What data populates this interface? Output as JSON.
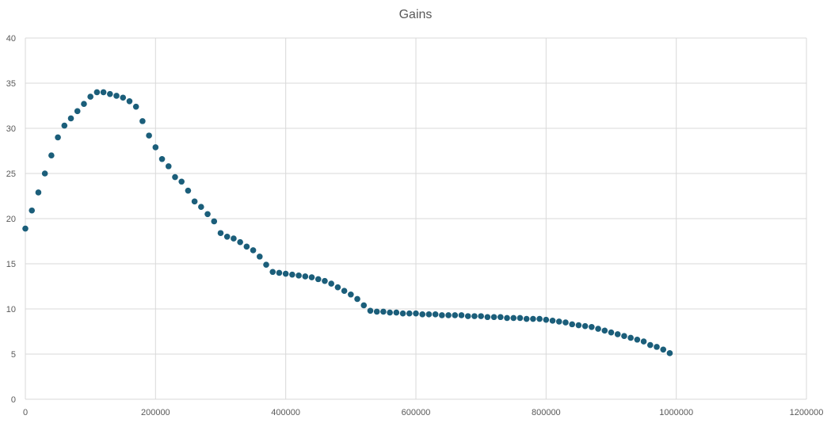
{
  "chart_data": {
    "type": "scatter",
    "title": "Gains",
    "xlabel": "",
    "ylabel": "",
    "xlim": [
      0,
      1200000
    ],
    "ylim": [
      0,
      40
    ],
    "x_ticks": [
      "0",
      "200000",
      "400000",
      "600000",
      "800000",
      "1000000",
      "1200000"
    ],
    "y_ticks": [
      "0",
      "5",
      "10",
      "15",
      "20",
      "25",
      "30",
      "35",
      "40"
    ],
    "grid": true,
    "legend": "none",
    "marker_color": "#1B5E7A",
    "grid_color": "#D9D9D9",
    "series": [
      {
        "x": [
          0,
          10000,
          20000,
          30000,
          40000,
          50000,
          60000,
          70000,
          80000,
          90000,
          100000,
          110000,
          120000,
          130000,
          140000,
          150000,
          160000,
          170000,
          180000,
          190000,
          200000,
          210000,
          220000,
          230000,
          240000,
          250000,
          260000,
          270000,
          280000,
          290000,
          300000,
          310000,
          320000,
          330000,
          340000,
          350000,
          360000,
          370000,
          380000,
          390000,
          400000,
          410000,
          420000,
          430000,
          440000,
          450000,
          460000,
          470000,
          480000,
          490000,
          500000,
          510000,
          520000,
          530000,
          540000,
          550000,
          560000,
          570000,
          580000,
          590000,
          600000,
          610000,
          620000,
          630000,
          640000,
          650000,
          660000,
          670000,
          680000,
          690000,
          700000,
          710000,
          720000,
          730000,
          740000,
          750000,
          760000,
          770000,
          780000,
          790000,
          800000,
          810000,
          820000,
          830000,
          840000,
          850000,
          860000,
          870000,
          880000,
          890000,
          900000,
          910000,
          920000,
          930000,
          940000,
          950000,
          960000,
          970000,
          980000,
          990000
        ],
        "y": [
          18.9,
          20.9,
          22.9,
          25.0,
          27.0,
          29.0,
          30.3,
          31.1,
          31.9,
          32.7,
          33.5,
          34.0,
          34.0,
          33.8,
          33.6,
          33.4,
          33.0,
          32.4,
          30.8,
          29.2,
          27.9,
          26.6,
          25.8,
          24.6,
          24.1,
          23.1,
          21.9,
          21.3,
          20.5,
          19.7,
          18.4,
          18.0,
          17.8,
          17.4,
          16.9,
          16.5,
          15.8,
          14.9,
          14.1,
          14.0,
          13.9,
          13.8,
          13.7,
          13.6,
          13.5,
          13.3,
          13.1,
          12.8,
          12.4,
          12.0,
          11.6,
          11.1,
          10.4,
          9.8,
          9.7,
          9.7,
          9.6,
          9.6,
          9.5,
          9.5,
          9.5,
          9.4,
          9.4,
          9.4,
          9.3,
          9.3,
          9.3,
          9.3,
          9.2,
          9.2,
          9.2,
          9.1,
          9.1,
          9.1,
          9.0,
          9.0,
          9.0,
          8.9,
          8.9,
          8.9,
          8.8,
          8.7,
          8.6,
          8.5,
          8.3,
          8.2,
          8.1,
          8.0,
          7.8,
          7.6,
          7.4,
          7.2,
          7.0,
          6.8,
          6.6,
          6.4,
          6.0,
          5.8,
          5.5,
          5.1
        ]
      }
    ]
  }
}
